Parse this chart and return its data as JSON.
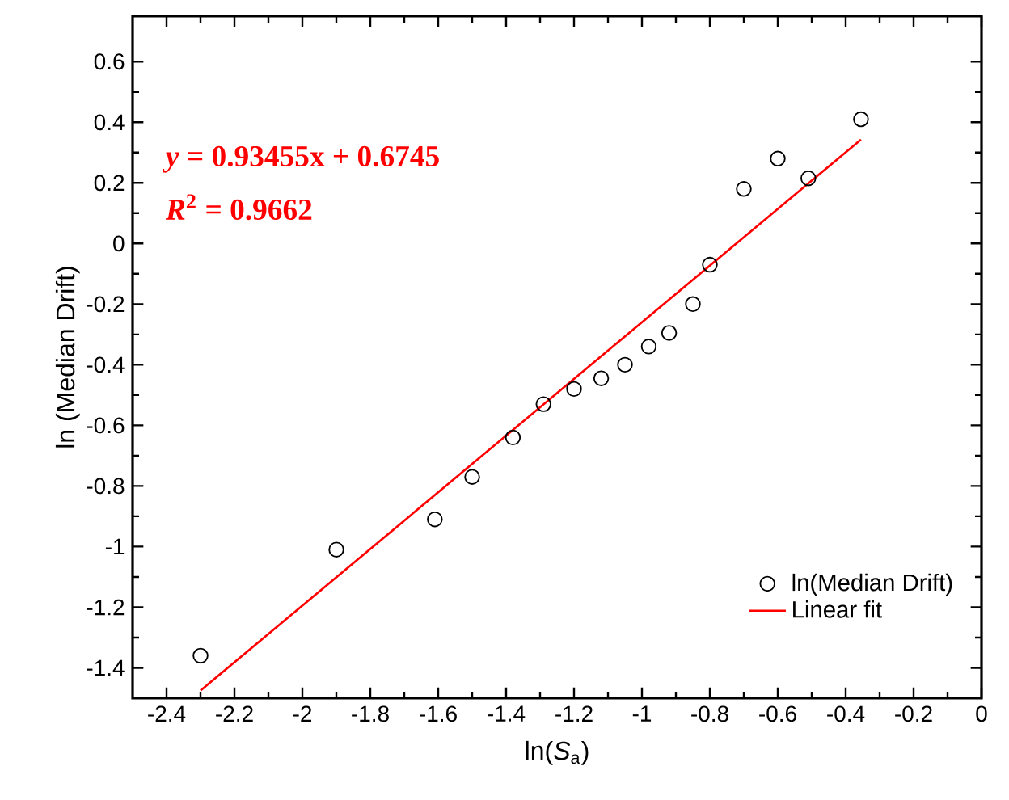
{
  "chart_data": {
    "type": "scatter",
    "xlabel": "ln(*S*$_{a}$)",
    "ylabel": "ln (Median Drift)",
    "annotations": [
      "*y* = 0.93455x + 0.6745",
      "*R*$^{2}$ = 0.9662"
    ],
    "xlim": [
      -2.5,
      0
    ],
    "ylim": [
      -1.5,
      0.75
    ],
    "xticks": [
      -2.4,
      -2.2,
      -2,
      -1.8,
      -1.6,
      -1.4,
      -1.2,
      -1,
      -0.8,
      -0.6,
      -0.4,
      -0.2,
      0
    ],
    "yticks": [
      -1.4,
      -1.2,
      -1,
      -0.8,
      -0.6,
      -0.4,
      -0.2,
      0,
      0.2,
      0.4,
      0.6
    ],
    "grid": false,
    "legend": "bottom right",
    "series": [
      {
        "name": "ln(Median Drift)",
        "type": "scatter",
        "marker": "circle",
        "color": "#000000",
        "x": [
          -2.3,
          -1.9,
          -1.61,
          -1.5,
          -1.38,
          -1.29,
          -1.2,
          -1.12,
          -1.05,
          -0.98,
          -0.92,
          -0.85,
          -0.8,
          -0.7,
          -0.6,
          -0.51,
          -0.355
        ],
        "values": [
          -1.36,
          -1.01,
          -0.91,
          -0.77,
          -0.64,
          -0.53,
          -0.48,
          -0.445,
          -0.4,
          -0.34,
          -0.295,
          -0.2,
          -0.07,
          0.18,
          0.28,
          0.215,
          0.41
        ]
      },
      {
        "name": "Linear fit",
        "type": "line",
        "marker": "none",
        "line_style": "solid",
        "color": "#ff0000",
        "x": [
          -2.3,
          -0.355
        ],
        "values": [
          -1.475,
          0.343
        ]
      }
    ]
  }
}
